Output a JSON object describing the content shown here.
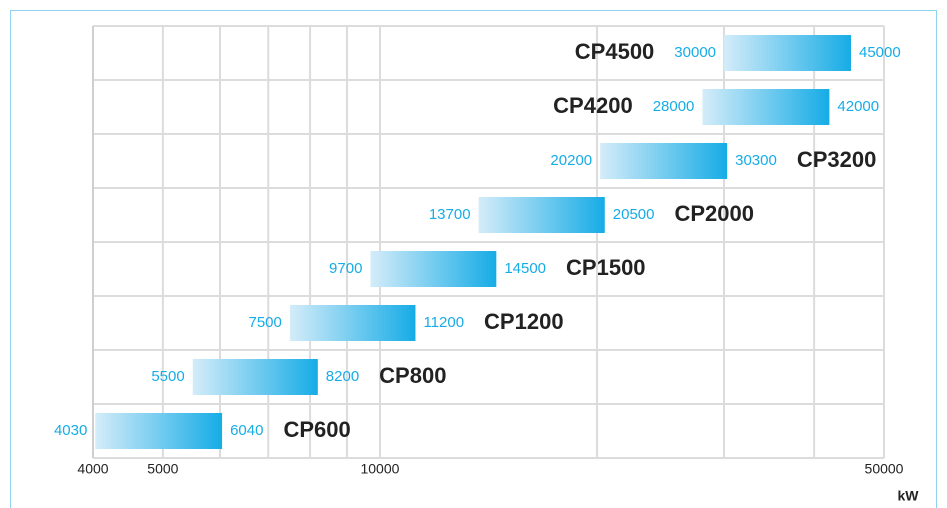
{
  "chart_data": {
    "type": "range_bar",
    "categories": [
      "CP600",
      "CP800",
      "CP1200",
      "CP1500",
      "CP2000",
      "CP3200",
      "CP4200",
      "CP4500"
    ],
    "start": [
      4030,
      5500,
      7500,
      9700,
      13700,
      20200,
      28000,
      30000
    ],
    "end": [
      6040,
      8200,
      11200,
      14500,
      20500,
      30300,
      42000,
      45000
    ],
    "color": "#16ace6",
    "x_label": "kW",
    "log_x": true,
    "xlim": [
      4000,
      50000
    ],
    "xticks": [
      4000,
      5000,
      10000,
      50000
    ],
    "x_minor_ticks": [
      6000,
      7000,
      8000,
      9000,
      20000,
      30000,
      40000
    ],
    "grid": true
  }
}
